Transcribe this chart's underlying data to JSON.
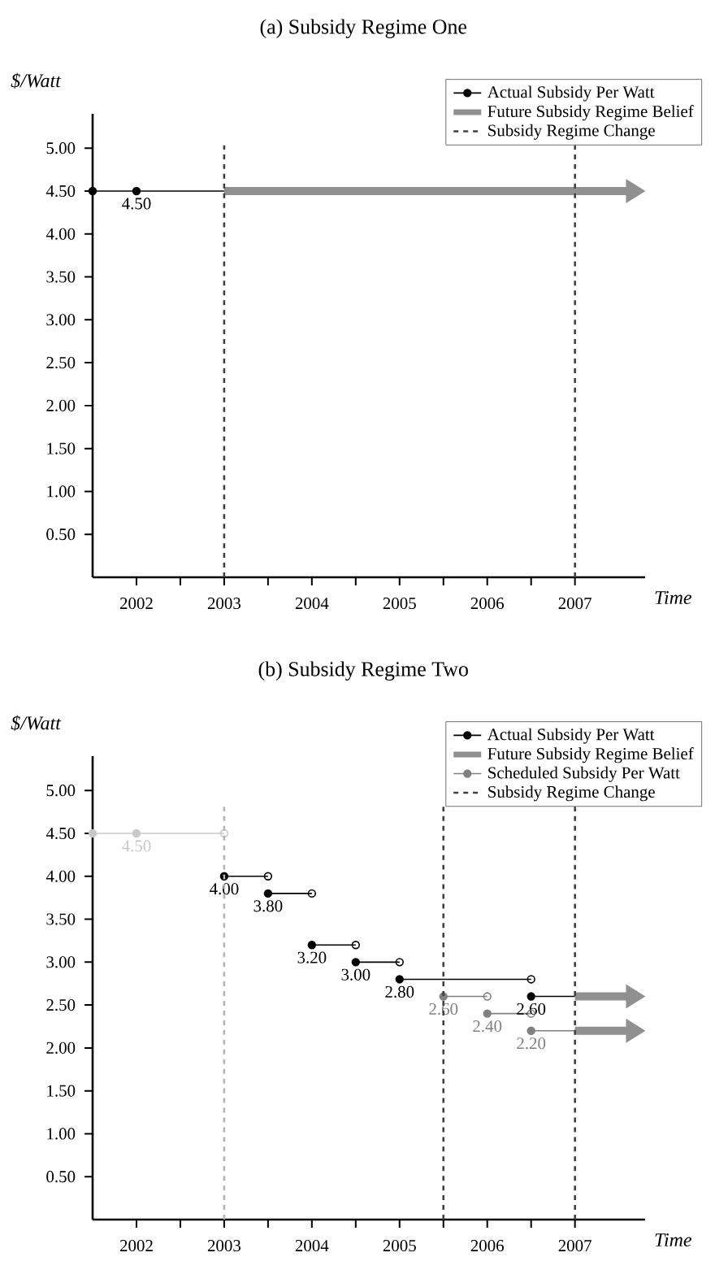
{
  "chart_data": [
    {
      "type": "line",
      "title": "(a) Subsidy Regime One",
      "xlabel": "Time",
      "ylabel": "$/Watt",
      "xlim": [
        2001.5,
        2007.8
      ],
      "ylim": [
        0,
        5.4
      ],
      "xticks": [
        2002,
        2003,
        2004,
        2005,
        2006,
        2007
      ],
      "yticks": [
        {
          "value": 0.5,
          "label": "0.50"
        },
        {
          "value": 1.0,
          "label": "1.00"
        },
        {
          "value": 1.5,
          "label": "1.50"
        },
        {
          "value": 2.0,
          "label": "2.00"
        },
        {
          "value": 2.5,
          "label": "2.50"
        },
        {
          "value": 3.0,
          "label": "3.00"
        },
        {
          "value": 3.5,
          "label": "3.50"
        },
        {
          "value": 4.0,
          "label": "4.00"
        },
        {
          "value": 4.5,
          "label": "4.50"
        },
        {
          "value": 5.0,
          "label": "5.00"
        }
      ],
      "legend": "top right",
      "series": [
        {
          "type": "step",
          "name": "Actual Subsidy Per Watt",
          "color": "#000000",
          "marker": "circle",
          "x": [
            2001.5,
            2002,
            2003
          ],
          "values": [
            4.5,
            4.5,
            4.5
          ],
          "value_labels": [
            null,
            "4.50",
            null
          ]
        },
        {
          "type": "line",
          "name": "Future Subsidy Regime Belief",
          "color": "#909090",
          "marker": "none",
          "x": [
            2003,
            2007.6
          ],
          "values": [
            4.5,
            4.5
          ]
        }
      ],
      "ref_lines": [
        {
          "axis": "x",
          "value": 2003,
          "color": "#404040",
          "line_style": "dashed"
        },
        {
          "axis": "x",
          "value": 2007,
          "color": "#404040",
          "line_style": "dashed",
          "label": "Subsidy Regime Change"
        }
      ]
    },
    {
      "type": "line",
      "title": "(b) Subsidy Regime Two",
      "xlabel": "Time",
      "ylabel": "$/Watt",
      "xlim": [
        2001.5,
        2007.8
      ],
      "ylim": [
        0,
        5.4
      ],
      "xticks": [
        2002,
        2003,
        2004,
        2005,
        2006,
        2007
      ],
      "yticks": [
        {
          "value": 0.5,
          "label": "0.50"
        },
        {
          "value": 1.0,
          "label": "1.00"
        },
        {
          "value": 1.5,
          "label": "1.50"
        },
        {
          "value": 2.0,
          "label": "2.00"
        },
        {
          "value": 2.5,
          "label": "2.50"
        },
        {
          "value": 3.0,
          "label": "3.00"
        },
        {
          "value": 3.5,
          "label": "3.50"
        },
        {
          "value": 4.0,
          "label": "4.00"
        },
        {
          "value": 4.5,
          "label": "4.50"
        },
        {
          "value": 5.0,
          "label": "5.00"
        }
      ],
      "legend": "top right",
      "series": [
        {
          "type": "step",
          "color": "#c8c8c8",
          "marker": "circle",
          "x": [
            2001.5,
            2002,
            2003
          ],
          "values": [
            4.5,
            4.5,
            4.5
          ],
          "value_labels": [
            null,
            "4.50",
            null
          ]
        },
        {
          "type": "step",
          "name": "Actual Subsidy Per Watt",
          "color": "#000000",
          "marker": "circle",
          "x": [
            2003,
            2003.5
          ],
          "values": [
            4.0,
            4.0
          ],
          "value_labels": [
            "4.00",
            null
          ]
        },
        {
          "type": "step",
          "color": "#000000",
          "marker": "circle",
          "x": [
            2003.5,
            2004
          ],
          "values": [
            3.8,
            3.8
          ],
          "value_labels": [
            "3.80",
            null
          ]
        },
        {
          "type": "step",
          "color": "#000000",
          "marker": "circle",
          "x": [
            2004,
            2004.5
          ],
          "values": [
            3.2,
            3.2
          ],
          "value_labels": [
            "3.20",
            null
          ]
        },
        {
          "type": "step",
          "color": "#000000",
          "marker": "circle",
          "x": [
            2004.5,
            2005
          ],
          "values": [
            3.0,
            3.0
          ],
          "value_labels": [
            "3.00",
            null
          ]
        },
        {
          "type": "step",
          "color": "#000000",
          "marker": "circle",
          "x": [
            2005,
            2006.5
          ],
          "values": [
            2.8,
            2.8
          ],
          "value_labels": [
            "2.80",
            null
          ]
        },
        {
          "type": "step",
          "color": "#000000",
          "marker": "circle",
          "x": [
            2006.5,
            2007
          ],
          "values": [
            2.6,
            2.6
          ],
          "value_labels": [
            "2.60",
            null
          ]
        },
        {
          "type": "line",
          "name": "Future Subsidy Regime Belief",
          "color": "#909090",
          "marker": "none",
          "x": [
            2007,
            2007.6
          ],
          "values": [
            2.6,
            2.6
          ]
        },
        {
          "type": "line",
          "color": "#909090",
          "marker": "none",
          "x": [
            2007,
            2007.6
          ],
          "values": [
            2.2,
            2.2
          ]
        },
        {
          "type": "step",
          "name": "Scheduled Subsidy Per Watt",
          "color": "#808080",
          "marker": "circle",
          "x": [
            2005.5,
            2006
          ],
          "values": [
            2.6,
            2.6
          ],
          "value_labels": [
            "2.60",
            null
          ]
        },
        {
          "type": "step",
          "color": "#808080",
          "marker": "circle",
          "x": [
            2006,
            2006.5
          ],
          "values": [
            2.4,
            2.4
          ],
          "value_labels": [
            "2.40",
            null
          ]
        },
        {
          "type": "step",
          "color": "#808080",
          "marker": "circle",
          "x": [
            2006.5,
            2007
          ],
          "values": [
            2.2,
            2.2
          ],
          "value_labels": [
            "2.20",
            null
          ]
        }
      ],
      "ref_lines": [
        {
          "axis": "x",
          "value": 2003,
          "color": "#b4b4b4",
          "line_style": "dashed"
        },
        {
          "axis": "x",
          "value": 2005.5,
          "color": "#404040",
          "line_style": "dashed",
          "label": "Subsidy Regime Change"
        },
        {
          "axis": "x",
          "value": 2007,
          "color": "#404040",
          "line_style": "dashed"
        }
      ]
    }
  ]
}
